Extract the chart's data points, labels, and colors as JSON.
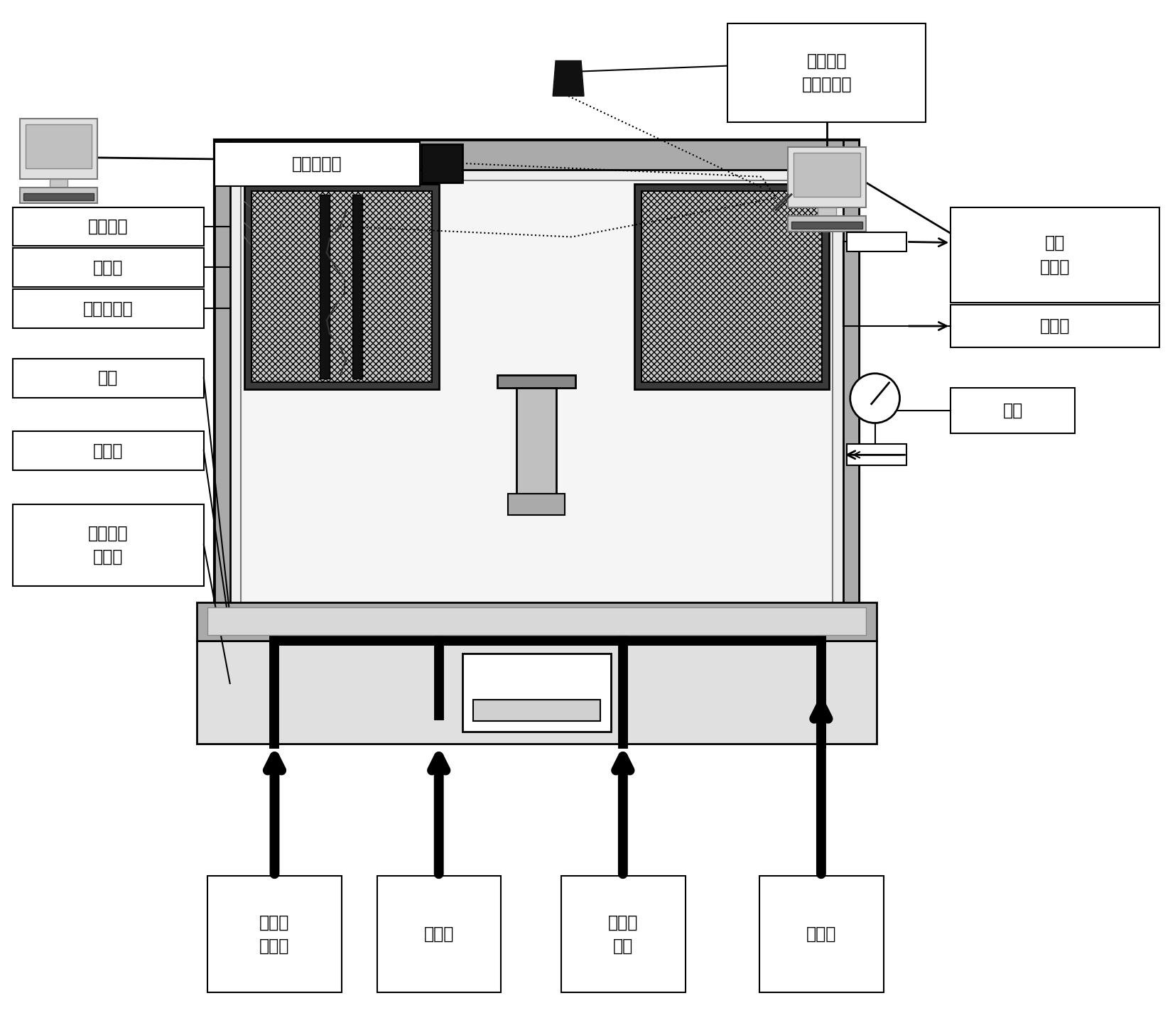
{
  "labels": {
    "gaosucamera": "高速摄像机",
    "shuangse": "双色光学\n高温测量计",
    "guancha": "观察窗口",
    "rediandian": "热电偶",
    "yinransi": "引燃用钨丝",
    "zhuanpan": "转盘",
    "qudongzhou": "驱动轴",
    "dongtai": "动态电流\n馈通器",
    "anquan": "安全\n控制阀",
    "paiqi": "排气口",
    "qiti": "气体",
    "shuju": "数据采\n集系统",
    "diandongji": "电动机",
    "yinranyuan": "引燃用\n电源",
    "zhenkong": "真空泵"
  },
  "fs": 17
}
